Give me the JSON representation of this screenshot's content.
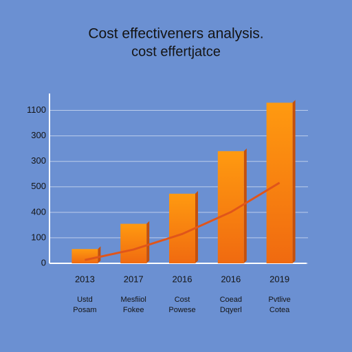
{
  "chart_data": {
    "type": "bar",
    "title": "Cost effectiveners analysis.",
    "subtitle": "cost effertjatce",
    "categories": [
      "2013",
      "2017",
      "2016",
      "2016",
      "2019"
    ],
    "sublabels": [
      [
        "Ustd",
        "Posam"
      ],
      [
        "Mesfiiol",
        "Fokee"
      ],
      [
        "Cost",
        "Powese"
      ],
      [
        "Coead",
        "Dqyerl"
      ],
      [
        "Pvtlive",
        "Cotea"
      ]
    ],
    "series": [
      {
        "color": "#f57c12",
        "values": [
          56,
          155,
          273,
          440,
          630
        ]
      },
      {
        "type": "line",
        "color": "#e0551a",
        "values": [
          13,
          54,
          115,
          201,
          316
        ]
      }
    ],
    "ylim": [
      0,
      650
    ],
    "yticks": [
      0,
      100,
      {
        "value": 200,
        "label": "400"
      },
      {
        "value": 300,
        "label": "500"
      },
      {
        "value": 400,
        "label": "300"
      },
      {
        "value": 500,
        "label": "300"
      },
      {
        "value": 600,
        "label": "1100"
      }
    ],
    "grid": true
  }
}
